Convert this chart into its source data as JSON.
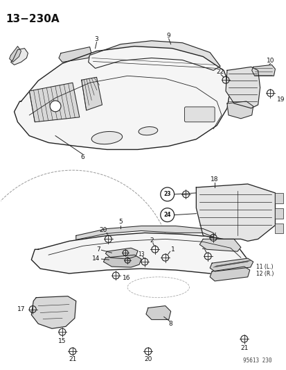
{
  "title": "13−230A",
  "watermark": "95613 230",
  "bg": "#ffffff",
  "lc": "#222222",
  "tc": "#111111",
  "figsize": [
    4.14,
    5.33
  ],
  "dpi": 100
}
